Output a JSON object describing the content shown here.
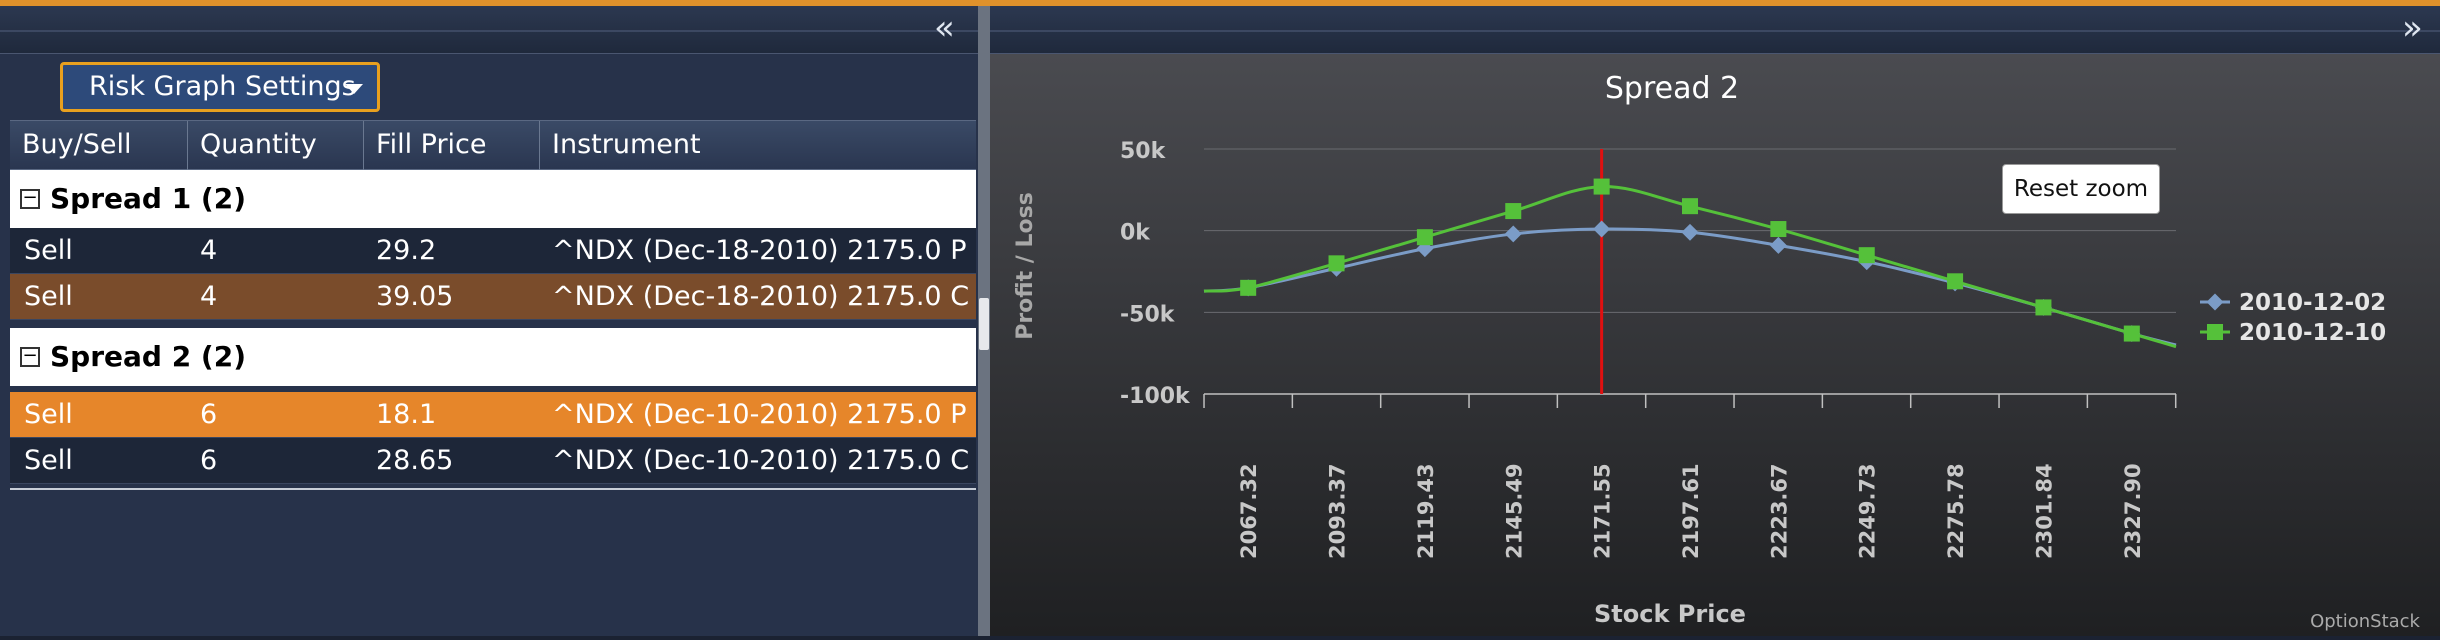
{
  "left": {
    "settings_label": "Risk Graph Settings",
    "columns": [
      "Buy/Sell",
      "Quantity",
      "Fill Price",
      "Instrument"
    ],
    "groups": [
      {
        "label": "Spread 1 (2)",
        "rows": [
          {
            "side": "Sell",
            "qty": "4",
            "price": "29.2",
            "instrument": "^NDX (Dec-18-2010) 2175.0 P"
          },
          {
            "side": "Sell",
            "qty": "4",
            "price": "39.05",
            "instrument": "^NDX (Dec-18-2010) 2175.0 C"
          }
        ]
      },
      {
        "label": "Spread 2 (2)",
        "rows": [
          {
            "side": "Sell",
            "qty": "6",
            "price": "18.1",
            "instrument": "^NDX (Dec-10-2010) 2175.0 P"
          },
          {
            "side": "Sell",
            "qty": "6",
            "price": "28.65",
            "instrument": "^NDX (Dec-10-2010) 2175.0 C"
          }
        ]
      }
    ]
  },
  "right": {
    "reset_zoom_label": "Reset zoom",
    "watermark": "OptionStack"
  },
  "colors": {
    "accent": "#e8a01f",
    "series_blue": "#7b9cc7",
    "series_green": "#55c13a",
    "marker_line": "#e01010"
  },
  "chart_data": {
    "type": "line",
    "title": "Spread 2",
    "xlabel": "Stock Price",
    "ylabel": "Profit / Loss",
    "x_ticks": [
      "2067.32",
      "2093.37",
      "2119.43",
      "2145.49",
      "2171.55",
      "2197.61",
      "2223.67",
      "2249.73",
      "2275.78",
      "2301.84",
      "2327.90"
    ],
    "y_ticks": [
      "50k",
      "0k",
      "-50k",
      "-100k"
    ],
    "y_tick_values": [
      50000,
      0,
      -50000,
      -100000
    ],
    "ylim": [
      -100000,
      50000
    ],
    "xlim": [
      2054.29,
      2340.93
    ],
    "marker_x": 2171.55,
    "legend_position": "right",
    "series": [
      {
        "name": "2010-12-02",
        "x": [
          2054.29,
          2067.32,
          2093.37,
          2119.43,
          2145.49,
          2171.55,
          2197.61,
          2223.67,
          2249.73,
          2275.78,
          2301.84,
          2327.9,
          2340.93
        ],
        "y": [
          -37000,
          -35000,
          -23000,
          -11000,
          -2000,
          1000,
          -1000,
          -9000,
          -19000,
          -32000,
          -47000,
          -63000,
          -70000
        ]
      },
      {
        "name": "2010-12-10",
        "x": [
          2054.29,
          2067.32,
          2093.37,
          2119.43,
          2145.49,
          2171.55,
          2197.61,
          2223.67,
          2249.73,
          2275.78,
          2301.84,
          2327.9,
          2340.93
        ],
        "y": [
          -37000,
          -35000,
          -20000,
          -4000,
          12000,
          27000,
          15000,
          1000,
          -15000,
          -31000,
          -47000,
          -63000,
          -71000
        ]
      }
    ]
  }
}
